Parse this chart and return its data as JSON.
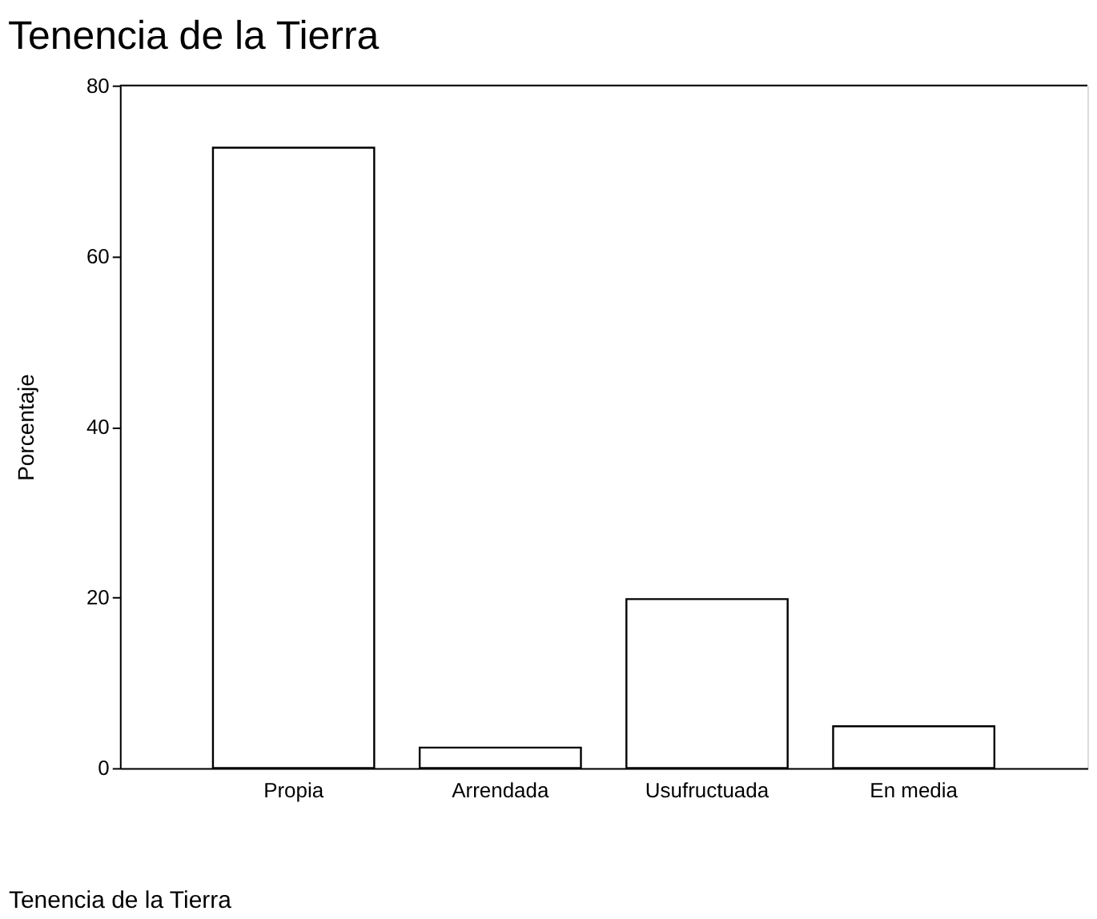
{
  "chart_data": {
    "type": "bar",
    "title": "Tenencia de la Tierra",
    "xlabel": "Tenencia de la Tierra",
    "ylabel": "Porcentaje",
    "categories": [
      "Propia",
      "Arrendada",
      "Usufructuada",
      "En media"
    ],
    "values": [
      72.7,
      2.4,
      19.8,
      4.9
    ],
    "color": "#ffffff",
    "ylim": [
      0,
      80
    ],
    "yticks": [
      0,
      20,
      40,
      60,
      80
    ],
    "grid": false
  }
}
